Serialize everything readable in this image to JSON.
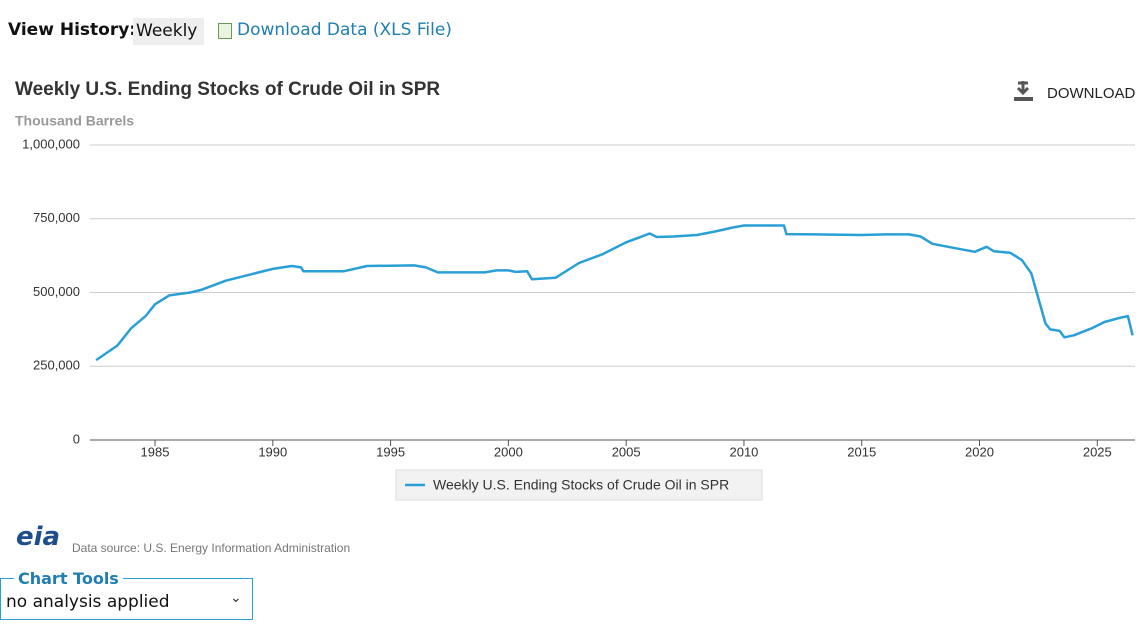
{
  "header": {
    "view_history_label": "View History:",
    "view_history_value": "Weekly",
    "download_data": "Download Data (XLS File)"
  },
  "chart_data": {
    "type": "line",
    "title": "Weekly U.S. Ending Stocks of Crude Oil in SPR",
    "y_label": "Thousand Barrels",
    "download": "DOWNLOAD",
    "x": [
      1982.5,
      1983.4,
      1984,
      1984.6,
      1985,
      1985.6,
      1986.5,
      1987,
      1988,
      1989,
      1990,
      1990.8,
      1991.2,
      1991.3,
      1993,
      1994,
      1996,
      1996.5,
      1997,
      1999,
      1999.5,
      2000,
      2000.3,
      2000.8,
      2001,
      2002,
      2003,
      2004,
      2005,
      2005.5,
      2006,
      2006.3,
      2007,
      2008,
      2008.8,
      2009.5,
      2010,
      2011.7,
      2011.8,
      2013,
      2015,
      2016,
      2017,
      2017.5,
      2018,
      2019,
      2019.8,
      2020.3,
      2020.6,
      2021.3,
      2021.8,
      2022.2,
      2022.5,
      2022.8,
      2023,
      2023.4,
      2023.6,
      2024,
      2024.8,
      2025.3,
      2026,
      2026.3,
      2026.5
    ],
    "series": [
      {
        "name": "Weekly U.S. Ending Stocks of Crude Oil in SPR",
        "color": "#2a9fd6",
        "values": [
          271000,
          320000,
          380000,
          420000,
          460000,
          490000,
          500000,
          510000,
          540000,
          560000,
          580000,
          590000,
          585000,
          572000,
          572000,
          590000,
          592000,
          585000,
          568000,
          568000,
          575000,
          575000,
          570000,
          572000,
          545000,
          550000,
          600000,
          630000,
          670000,
          685000,
          700000,
          688000,
          690000,
          695000,
          707000,
          720000,
          727000,
          727000,
          698000,
          697000,
          695000,
          697000,
          697000,
          690000,
          665000,
          650000,
          638000,
          655000,
          640000,
          635000,
          610000,
          565000,
          480000,
          395000,
          375000,
          370000,
          348000,
          355000,
          380000,
          400000,
          415000,
          420000,
          355000
        ]
      }
    ],
    "xlim": [
      1982.24,
      2026.6
    ],
    "xticks": [
      1985,
      1990,
      1995,
      2000,
      2005,
      2010,
      2015,
      2020,
      2025
    ],
    "ylim": [
      0,
      1000000
    ],
    "yticks": [
      0,
      {
        "value": 250000,
        "label": "250,000"
      },
      {
        "value": 500000,
        "label": "500,000"
      },
      {
        "value": 750000,
        "label": "750,000"
      },
      {
        "value": 1000000,
        "label": "1,000,000"
      }
    ],
    "grid": true
  },
  "footer": {
    "logo": "eia",
    "source": "Data source: U.S. Energy Information Administration",
    "tools_title": "Chart Tools",
    "tools_value": "no analysis applied"
  }
}
